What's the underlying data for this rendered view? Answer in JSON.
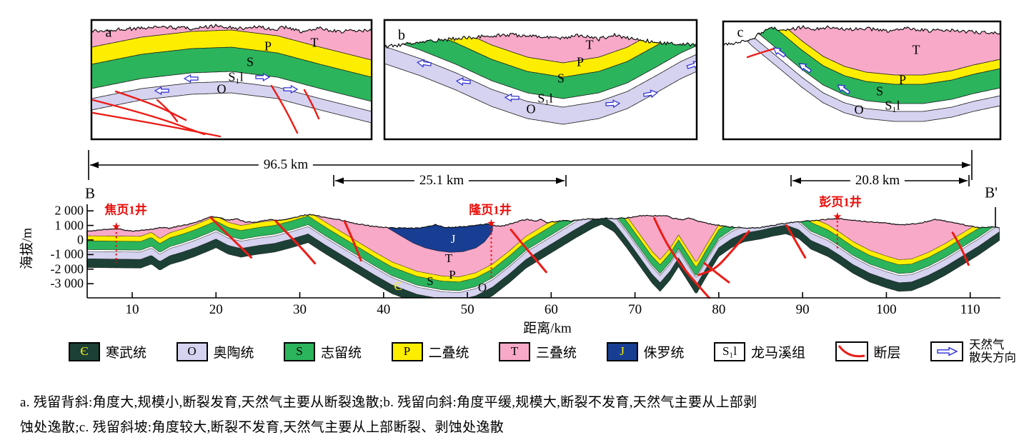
{
  "colors": {
    "cambrian": "#1c4036",
    "ordovician": "#d6d3f0",
    "silurian": "#2cb45c",
    "permian": "#fdee00",
    "triassic": "#f8a9c8",
    "jurassic": "#173e92",
    "longmaxi": "#ffffff",
    "fault": "#ec1c16",
    "gas_arrow": "#2b2bd5",
    "well": "#e8100c"
  },
  "strat": {
    "cambrian": "Є",
    "ordovician": "O",
    "silurian": "S",
    "permian": "P",
    "triassic": "T",
    "jurassic": "J",
    "longmaxi": "S₁l"
  },
  "panels": [
    {
      "letter": "a"
    },
    {
      "letter": "b"
    },
    {
      "letter": "c"
    }
  ],
  "scale_bars": [
    {
      "label": "96.5 km"
    },
    {
      "label": "25.1 km"
    },
    {
      "label": "20.8 km"
    }
  ],
  "section": {
    "left_end": "B",
    "right_end": "B'",
    "elev_axis_label": "海拔/m",
    "dist_axis_label": "距离/km",
    "elev_ticks": [
      "2 000",
      "1 000",
      "0",
      "-1 000",
      "-2 000",
      "-3 000"
    ],
    "dist_ticks": [
      "10",
      "20",
      "30",
      "40",
      "50",
      "60",
      "70",
      "80",
      "90",
      "100",
      "110"
    ],
    "wells": [
      "焦页1井",
      "隆页1井",
      "彭页1井"
    ]
  },
  "legend": [
    {
      "type": "unit",
      "symbol": "Є",
      "symbol_color": "#fdee00",
      "fill": "cambrian",
      "label": "寒武统"
    },
    {
      "type": "unit",
      "symbol": "O",
      "symbol_color": "#000000",
      "fill": "ordovician",
      "label": "奥陶统"
    },
    {
      "type": "unit",
      "symbol": "S",
      "symbol_color": "#000000",
      "fill": "silurian",
      "label": "志留统"
    },
    {
      "type": "unit",
      "symbol": "P",
      "symbol_color": "#000000",
      "fill": "permian",
      "label": "二叠统"
    },
    {
      "type": "unit",
      "symbol": "T",
      "symbol_color": "#000000",
      "fill": "triassic",
      "label": "三叠统"
    },
    {
      "type": "unit",
      "symbol": "J",
      "symbol_color": "#fdee00",
      "fill": "jurassic",
      "label": "侏罗统"
    },
    {
      "type": "unit",
      "symbol": "S₁l",
      "symbol_color": "#000000",
      "fill": "longmaxi",
      "label": "龙马溪组"
    },
    {
      "type": "fault",
      "label": "断层"
    },
    {
      "type": "gas",
      "label_lines": [
        "天然气",
        "散失方向"
      ]
    }
  ],
  "caption": {
    "line1": "a. 残留背斜:角度大,规模小,断裂发育,天然气主要从断裂逸散;b. 残留向斜:角度平缓,规模大,断裂不发育,天然气主要从上部剥",
    "line2": "蚀处逸散;c. 残留斜坡:角度较大,断裂不发育,天然气主要从上部断裂、剥蚀处逸散"
  }
}
